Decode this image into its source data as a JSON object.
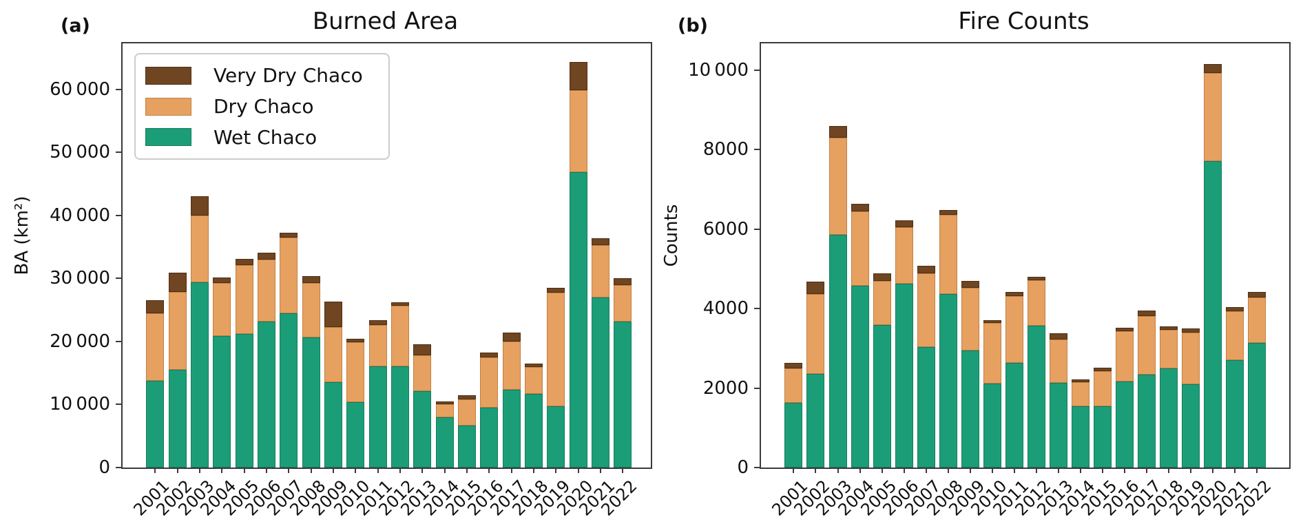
{
  "figure": {
    "panels": [
      {
        "index_label": "(a)",
        "title": "Burned Area",
        "ylabel": "BA (km²)",
        "ymax": 67300,
        "yticks": [
          {
            "value": 0,
            "label": "0"
          },
          {
            "value": 10000,
            "label": "10 000"
          },
          {
            "value": 20000,
            "label": "20 000"
          },
          {
            "value": 30000,
            "label": "30 000"
          },
          {
            "value": 40000,
            "label": "40 000"
          },
          {
            "value": 50000,
            "label": "50 000"
          },
          {
            "value": 60000,
            "label": "60 000"
          }
        ]
      },
      {
        "index_label": "(b)",
        "title": "Fire Counts",
        "ylabel": "Counts",
        "ymax": 10670,
        "yticks": [
          {
            "value": 0,
            "label": "0"
          },
          {
            "value": 2000,
            "label": "2000"
          },
          {
            "value": 4000,
            "label": "4000"
          },
          {
            "value": 6000,
            "label": "6000"
          },
          {
            "value": 8000,
            "label": "8000"
          },
          {
            "value": 10000,
            "label": "10 000"
          }
        ]
      }
    ],
    "legend": {
      "entries": [
        {
          "label": "Very Dry Chaco",
          "color": "#6f4522",
          "edge": "#4e2f15"
        },
        {
          "label": "Dry Chaco",
          "color": "#e6a161",
          "edge": "#c17f42"
        },
        {
          "label": "Wet Chaco",
          "color": "#1b9e78",
          "edge": "#157a5d"
        }
      ]
    }
  },
  "chart_data": [
    {
      "type": "bar",
      "stacked": true,
      "title": "Burned Area",
      "xlabel": "",
      "ylabel": "BA (km²)",
      "ylim": [
        0,
        67300
      ],
      "legend_position": "upper left",
      "grid": false,
      "categories": [
        "2001",
        "2002",
        "2003",
        "2004",
        "2005",
        "2006",
        "2007",
        "2008",
        "2009",
        "2010",
        "2011",
        "2012",
        "2013",
        "2014",
        "2015",
        "2016",
        "2017",
        "2018",
        "2019",
        "2020",
        "2021",
        "2022"
      ],
      "series": [
        {
          "name": "Wet Chaco",
          "color": "#1b9e78",
          "values": [
            13800,
            15500,
            29400,
            20900,
            21200,
            23200,
            24500,
            20700,
            13500,
            10400,
            16100,
            16100,
            12100,
            8000,
            6700,
            9500,
            12400,
            11700,
            9700,
            46900,
            27000,
            23200
          ]
        },
        {
          "name": "Dry Chaco",
          "color": "#e6a161",
          "values": [
            10700,
            12400,
            10600,
            8400,
            10900,
            9800,
            12000,
            8600,
            8800,
            9500,
            6500,
            9600,
            5700,
            2100,
            4100,
            8000,
            7600,
            4200,
            18100,
            13000,
            8300,
            5700
          ]
        },
        {
          "name": "Very Dry Chaco",
          "color": "#6f4522",
          "values": [
            2000,
            3000,
            3000,
            900,
            1000,
            1100,
            800,
            1100,
            4000,
            500,
            800,
            500,
            1800,
            400,
            700,
            800,
            1400,
            600,
            700,
            4500,
            1100,
            1100
          ]
        }
      ]
    },
    {
      "type": "bar",
      "stacked": true,
      "title": "Fire Counts",
      "xlabel": "",
      "ylabel": "Counts",
      "ylim": [
        0,
        10670
      ],
      "grid": false,
      "categories": [
        "2001",
        "2002",
        "2003",
        "2004",
        "2005",
        "2006",
        "2007",
        "2008",
        "2009",
        "2010",
        "2011",
        "2012",
        "2013",
        "2014",
        "2015",
        "2016",
        "2017",
        "2018",
        "2019",
        "2020",
        "2021",
        "2022"
      ],
      "series": [
        {
          "name": "Wet Chaco",
          "color": "#1b9e78",
          "values": [
            1620,
            2360,
            5850,
            4580,
            3580,
            4620,
            3030,
            4360,
            2950,
            2110,
            2630,
            3560,
            2130,
            1540,
            1550,
            2160,
            2340,
            2500,
            2100,
            7700,
            2710,
            3140
          ]
        },
        {
          "name": "Dry Chaco",
          "color": "#e6a161",
          "values": [
            880,
            2010,
            2440,
            1860,
            1110,
            1430,
            1850,
            1990,
            1570,
            1520,
            1680,
            1160,
            1090,
            600,
            880,
            1270,
            1470,
            960,
            1300,
            2220,
            1230,
            1140
          ]
        },
        {
          "name": "Very Dry Chaco",
          "color": "#6f4522",
          "values": [
            130,
            310,
            310,
            190,
            190,
            170,
            190,
            130,
            180,
            70,
            100,
            80,
            150,
            80,
            90,
            90,
            140,
            90,
            100,
            230,
            90,
            140
          ]
        }
      ]
    }
  ]
}
